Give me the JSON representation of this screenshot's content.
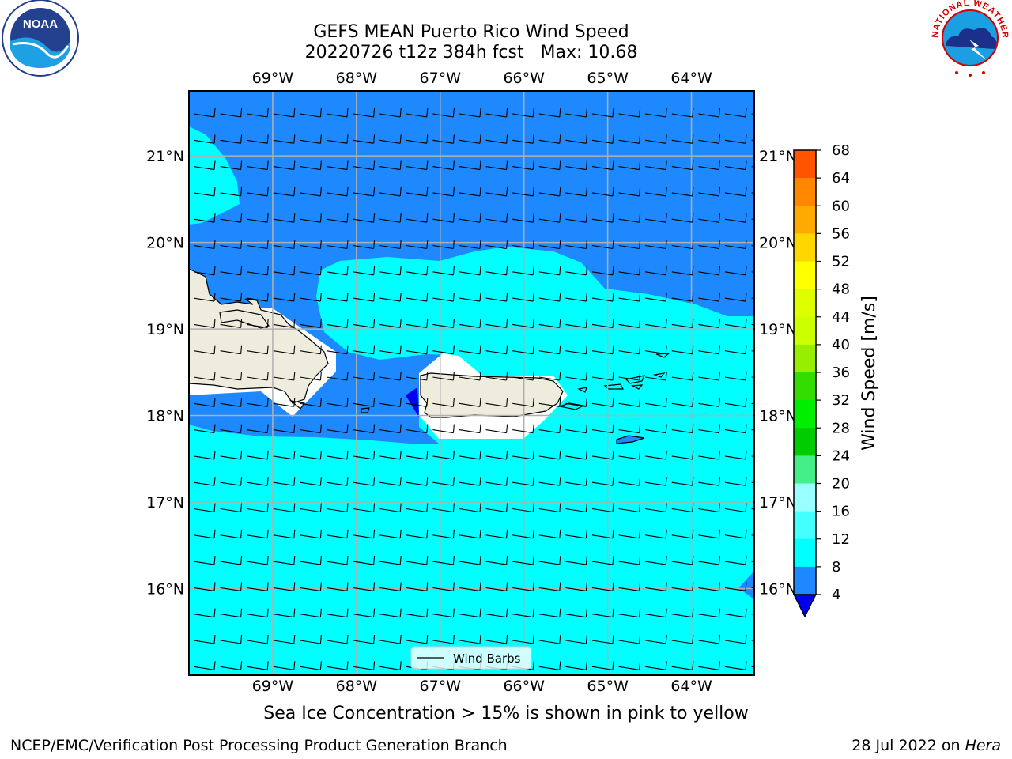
{
  "title": {
    "line1": "GEFS MEAN Puerto Rico Wind Speed",
    "line2": "20220726 t12z 384h fcst   Max: 10.68"
  },
  "map": {
    "lon_labels": [
      "69°W",
      "68°W",
      "67°W",
      "66°W",
      "65°W",
      "64°W"
    ],
    "lat_labels": [
      "21°N",
      "20°N",
      "19°N",
      "18°N",
      "17°N",
      "16°N"
    ],
    "lon_range": [
      -70.0,
      -63.25
    ],
    "lat_range": [
      15.0,
      21.75
    ],
    "legend_label": "Wind Barbs",
    "wind_direction": "easterly",
    "colors": {
      "ocean_strong": "#1e88ff",
      "ocean_light": "#00ffff",
      "land": "#eeeddd",
      "grid": "#b0b0b0",
      "min_blue": "#0000ee"
    }
  },
  "colorbar": {
    "label": "Wind Speed [m/s]",
    "ticks": [
      "68",
      "64",
      "60",
      "56",
      "52",
      "48",
      "44",
      "40",
      "36",
      "32",
      "28",
      "24",
      "20",
      "16",
      "12",
      "8",
      "4"
    ],
    "colors": [
      "#1e88ff",
      "#00ffff",
      "#44ffff",
      "#99ffff",
      "#44ee88",
      "#00cc00",
      "#00ee00",
      "#33dd00",
      "#99ee00",
      "#ccff00",
      "#ddff00",
      "#ffff00",
      "#ffd700",
      "#ffaa00",
      "#ff8800",
      "#ff5500",
      "#ff2200",
      "#ff0000"
    ],
    "under_color": "#0000ee"
  },
  "note": "Sea Ice Concentration > 15% is shown in pink to yellow",
  "footer": {
    "left": "NCEP/EMC/Verification Post Processing Product Generation Branch",
    "right_date": "28 Jul 2022 on ",
    "right_machine": "Hera"
  },
  "logos": {
    "noaa_text": "NOAA",
    "nws_text": "NATIONAL WEATHER SERVICE"
  }
}
